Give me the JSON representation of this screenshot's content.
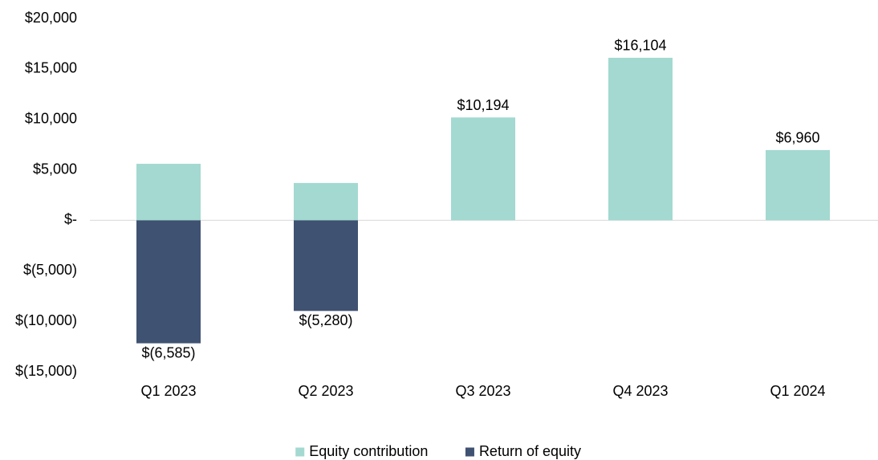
{
  "chart_data": {
    "type": "bar",
    "categories": [
      "Q1 2023",
      "Q2 2023",
      "Q3 2023",
      "Q4 2023",
      "Q1 2024"
    ],
    "series": [
      {
        "name": "Equity contribution",
        "color": "#a3d9d1",
        "values": [
          5600,
          3700,
          10194,
          16104,
          6960
        ]
      },
      {
        "name": "Return of equity",
        "color": "#3f5272",
        "values": [
          -12185,
          -8980,
          null,
          null,
          null
        ]
      }
    ],
    "net_values": [
      -6585,
      -5280,
      10194,
      16104,
      6960
    ],
    "net_value_labels": [
      "$(6,585)",
      "$(5,280)",
      "$10,194",
      "$16,104",
      "$6,960"
    ],
    "stacked": true,
    "ylim": [
      -15000,
      20000
    ],
    "yticks": [
      {
        "value": -15000,
        "label": "$(15,000)"
      },
      {
        "value": -10000,
        "label": "$(10,000)"
      },
      {
        "value": -5000,
        "label": "$(5,000)"
      },
      {
        "value": 0,
        "label": "$-"
      },
      {
        "value": 5000,
        "label": "$5,000"
      },
      {
        "value": 10000,
        "label": "$10,000"
      },
      {
        "value": 15000,
        "label": "$15,000"
      },
      {
        "value": 20000,
        "label": "$20,000"
      }
    ],
    "legend": "bottom"
  }
}
